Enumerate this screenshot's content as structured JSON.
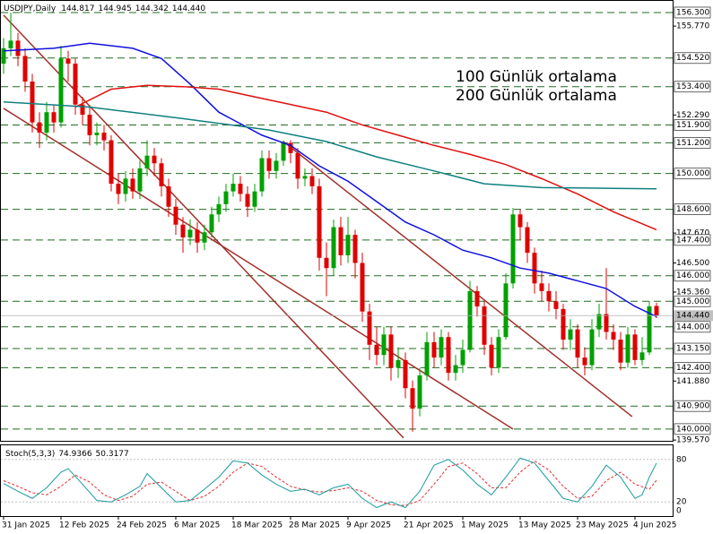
{
  "chart_data": {
    "type": "candlestick",
    "title": "USDJPY,Daily",
    "ohlc_labels": [
      "144.817",
      "144.945",
      "144.342",
      "144.440"
    ],
    "ylim": [
      139.54,
      156.79
    ],
    "yticks": [
      {
        "value": 155.77,
        "label": "155.770"
      },
      {
        "value": 152.29,
        "label": "152.290"
      },
      {
        "value": 147.67,
        "label": "147.670"
      },
      {
        "value": 146.5,
        "label": "146.500"
      },
      {
        "value": 145.36,
        "label": "145.360"
      },
      {
        "value": 141.88,
        "label": "141.880"
      },
      {
        "value": 139.57,
        "label": "139.570"
      }
    ],
    "levels": [
      {
        "value": 156.3,
        "label": "156.300"
      },
      {
        "value": 154.52,
        "label": "154.520"
      },
      {
        "value": 153.4,
        "label": "153.400"
      },
      {
        "value": 151.9,
        "label": "151.900"
      },
      {
        "value": 151.2,
        "label": "151.200"
      },
      {
        "value": 150,
        "label": "150.000"
      },
      {
        "value": 148.6,
        "label": "148.600"
      },
      {
        "value": 147.4,
        "label": "147.400"
      },
      {
        "value": 146,
        "label": "146.000"
      },
      {
        "value": 145,
        "label": "145.000"
      },
      {
        "value": 144,
        "label": "144.000"
      },
      {
        "value": 143.15,
        "label": "143.150"
      },
      {
        "value": 142.4,
        "label": "142.400"
      },
      {
        "value": 140.9,
        "label": "140.900"
      },
      {
        "value": 140,
        "label": "140.000"
      }
    ],
    "level_color": "#1f6b1f",
    "bull_color": "#00a000",
    "bear_color": "#e00000",
    "xticks": [
      {
        "value": 0,
        "label": "31 Jan 2025"
      },
      {
        "value": 8,
        "label": "12 Feb 2025"
      },
      {
        "value": 16,
        "label": "24 Feb 2025"
      },
      {
        "value": 24,
        "label": "6 Mar 2025"
      },
      {
        "value": 32,
        "label": "18 Mar 2025"
      },
      {
        "value": 40,
        "label": "28 Mar 2025"
      },
      {
        "value": 48,
        "label": "9 Apr 2025"
      },
      {
        "value": 56,
        "label": "21 Apr 2025"
      },
      {
        "value": 64,
        "label": "1 May 2025"
      },
      {
        "value": 72,
        "label": "13 May 2025"
      },
      {
        "value": 80,
        "label": "23 May 2025"
      },
      {
        "value": 88,
        "label": "4 Jun 2025"
      }
    ],
    "candles": {
      "open": [
        154.3,
        154.9,
        155.2,
        154.6,
        153.6,
        152.0,
        151.6,
        152.4,
        152.0,
        154.5,
        154.3,
        152.7,
        152.3,
        151.5,
        151.6,
        151.3,
        149.6,
        149.2,
        149.8,
        149.3,
        150.2,
        150.7,
        150.4,
        149.5,
        148.7,
        148.0,
        147.5,
        147.8,
        147.3,
        147.7,
        148.4,
        148.8,
        149.3,
        149.6,
        149.2,
        148.7,
        149.3,
        150.6,
        150.1,
        150.5,
        151.2,
        150.8,
        149.8,
        149.9,
        149.5,
        146.7,
        146.3,
        147.9,
        146.8,
        147.6,
        146.5,
        144.6,
        143.3,
        142.9,
        143.7,
        142.4,
        142.7,
        141.6,
        140.8,
        142.1,
        143.4,
        142.8,
        143.6,
        142.2,
        142.5,
        143.1,
        145.4,
        144.8,
        143.3,
        142.4,
        143.6,
        145.7,
        148.4,
        147.9,
        146.9,
        145.7,
        145.4,
        145.0,
        144.7,
        143.5,
        143.9,
        142.8,
        142.5,
        143.9,
        144.5,
        143.8,
        143.5,
        142.6,
        143.7,
        142.7,
        143.0,
        144.817
      ],
      "high": [
        155.3,
        156.3,
        155.5,
        154.9,
        153.9,
        152.4,
        152.8,
        152.7,
        155.0,
        154.8,
        154.5,
        153.0,
        152.6,
        152.0,
        151.9,
        151.5,
        150.0,
        150.1,
        150.2,
        150.5,
        151.3,
        151.0,
        150.6,
        149.8,
        149.0,
        148.3,
        148.2,
        148.1,
        148.0,
        148.7,
        149.1,
        149.6,
        150.0,
        149.9,
        149.5,
        149.6,
        150.9,
        150.9,
        150.8,
        151.3,
        151.3,
        151.0,
        150.2,
        150.2,
        149.8,
        147.3,
        148.2,
        148.3,
        148.3,
        147.8,
        146.9,
        144.9,
        144.0,
        144.0,
        144.0,
        143.2,
        143.0,
        141.9,
        142.4,
        143.8,
        143.8,
        143.9,
        143.8,
        142.9,
        143.5,
        145.8,
        145.6,
        145.0,
        143.6,
        143.9,
        146.1,
        148.65,
        148.6,
        148.1,
        147.1,
        146.2,
        145.7,
        145.4,
        144.9,
        144.3,
        144.1,
        143.2,
        144.3,
        144.9,
        146.3,
        144.1,
        143.8,
        144.0,
        143.9,
        143.6,
        145.0,
        144.945
      ],
      "low": [
        153.9,
        154.6,
        154.2,
        153.2,
        151.6,
        151.0,
        151.3,
        151.6,
        151.8,
        153.6,
        152.3,
        151.9,
        151.1,
        151.1,
        150.9,
        149.3,
        148.8,
        148.9,
        149.0,
        149.0,
        149.9,
        149.9,
        149.1,
        148.3,
        147.6,
        146.9,
        147.2,
        146.9,
        147.0,
        147.5,
        148.1,
        148.5,
        149.1,
        148.9,
        148.3,
        148.5,
        149.1,
        149.8,
        149.8,
        150.3,
        150.4,
        149.4,
        149.5,
        149.2,
        146.2,
        145.2,
        146.0,
        146.4,
        146.5,
        145.9,
        144.2,
        142.7,
        142.5,
        142.5,
        141.9,
        142.0,
        141.2,
        139.9,
        140.5,
        141.9,
        142.4,
        142.5,
        141.9,
        141.9,
        142.2,
        143.0,
        144.4,
        142.9,
        142.1,
        142.2,
        143.5,
        145.5,
        147.4,
        146.5,
        145.3,
        145.0,
        144.6,
        144.3,
        143.1,
        143.1,
        142.4,
        142.1,
        142.3,
        143.6,
        143.5,
        143.1,
        142.3,
        142.4,
        142.5,
        142.5,
        142.9,
        144.342
      ],
      "close": [
        154.9,
        155.2,
        154.6,
        153.6,
        152.0,
        151.6,
        152.4,
        152.0,
        154.5,
        154.3,
        152.7,
        152.3,
        151.5,
        151.6,
        151.3,
        149.6,
        149.2,
        149.8,
        149.3,
        150.2,
        150.7,
        150.4,
        149.5,
        148.7,
        148.0,
        147.5,
        147.8,
        147.3,
        147.7,
        148.4,
        148.8,
        149.3,
        149.6,
        149.2,
        148.7,
        149.3,
        150.6,
        150.1,
        150.5,
        151.2,
        150.8,
        149.8,
        149.9,
        149.5,
        146.7,
        146.3,
        147.9,
        146.8,
        147.6,
        146.5,
        144.6,
        143.3,
        142.9,
        143.7,
        142.4,
        142.7,
        141.6,
        140.8,
        142.1,
        143.4,
        142.8,
        143.6,
        142.2,
        142.5,
        143.1,
        145.4,
        144.8,
        143.3,
        142.4,
        143.6,
        145.7,
        148.4,
        147.9,
        146.9,
        145.7,
        145.4,
        145.0,
        144.7,
        143.5,
        143.9,
        142.8,
        142.5,
        143.9,
        144.5,
        143.8,
        143.5,
        142.6,
        143.7,
        142.7,
        143.0,
        144.8,
        144.44
      ]
    },
    "series": [
      {
        "color": "#1010e0",
        "x": [
          0,
          7,
          12,
          18,
          22,
          26,
          30,
          36,
          40,
          44,
          48,
          52,
          56,
          60,
          64,
          68,
          72,
          76,
          80,
          84,
          88,
          91
        ],
        "values": [
          154.8,
          154.9,
          155.1,
          154.9,
          154.5,
          153.5,
          152.4,
          151.5,
          151.1,
          150.3,
          149.7,
          148.9,
          148.1,
          147.6,
          147.0,
          146.7,
          146.3,
          146.1,
          145.8,
          145.5,
          144.8,
          144.4
        ]
      },
      {
        "name": "100 Günlük ortalama",
        "color": "#e01010",
        "x": [
          10,
          15,
          20,
          25,
          30,
          35,
          40,
          45,
          50,
          55,
          60,
          65,
          70,
          75,
          80,
          85,
          91
        ],
        "values": [
          152.6,
          153.3,
          153.45,
          153.4,
          153.3,
          153.0,
          152.7,
          152.4,
          151.9,
          151.5,
          151.1,
          150.75,
          150.35,
          149.8,
          149.2,
          148.5,
          147.8
        ]
      },
      {
        "name": "200 Günlük ortalama",
        "color": "#108080",
        "x": [
          0,
          12,
          25,
          37,
          45,
          52,
          60,
          67,
          75,
          85,
          91
        ],
        "values": [
          152.8,
          152.6,
          152.15,
          151.7,
          151.25,
          150.65,
          150.1,
          149.6,
          149.45,
          149.42,
          149.4
        ]
      }
    ],
    "trendlines": [
      {
        "color": "#a0302a",
        "x": [
          0,
          55.75
        ],
        "values": [
          156.2,
          139.65
        ]
      },
      {
        "color": "#a0302a",
        "x": [
          0,
          71
        ],
        "values": [
          152.55,
          140.0
        ]
      },
      {
        "color": "#a0302a",
        "x": [
          39,
          87.6
        ],
        "values": [
          151.25,
          140.49
        ]
      }
    ],
    "stoch": {
      "title": "Stoch(5,3,3)",
      "ylim": [
        0,
        100
      ],
      "yticks": [
        80,
        20,
        0
      ],
      "k": {
        "color": "#1a9aa0",
        "x": [
          0,
          2,
          4,
          6,
          8,
          9,
          11,
          13,
          15,
          17,
          19,
          20,
          22,
          24,
          26,
          28,
          30,
          32,
          34,
          36,
          38,
          40,
          42,
          44,
          46,
          48,
          50,
          52,
          54,
          56,
          58,
          60,
          62,
          64,
          66,
          68,
          70,
          72,
          74,
          76,
          78,
          80,
          82,
          84,
          86,
          88,
          89,
          90,
          91
        ],
        "values": [
          46,
          35,
          25,
          40,
          62,
          67,
          45,
          22,
          20,
          30,
          42,
          60,
          40,
          20,
          22,
          38,
          55,
          78,
          75,
          58,
          45,
          35,
          38,
          30,
          40,
          45,
          25,
          12,
          20,
          12,
          35,
          72,
          80,
          65,
          45,
          30,
          55,
          82,
          75,
          50,
          25,
          20,
          42,
          72,
          55,
          25,
          30,
          55,
          74.9366
        ]
      },
      "d": {
        "color": "#e03030",
        "x": [
          0,
          2,
          4,
          6,
          8,
          10,
          12,
          14,
          16,
          18,
          20,
          22,
          24,
          26,
          28,
          30,
          32,
          34,
          36,
          38,
          40,
          42,
          44,
          46,
          48,
          50,
          52,
          54,
          56,
          58,
          60,
          62,
          64,
          66,
          68,
          70,
          72,
          74,
          76,
          78,
          80,
          82,
          84,
          86,
          88,
          90,
          91
        ],
        "values": [
          50,
          42,
          33,
          30,
          42,
          58,
          48,
          30,
          22,
          28,
          45,
          48,
          35,
          22,
          28,
          42,
          62,
          75,
          70,
          55,
          42,
          37,
          34,
          36,
          40,
          35,
          22,
          16,
          15,
          22,
          45,
          70,
          75,
          60,
          40,
          40,
          62,
          78,
          65,
          42,
          25,
          28,
          50,
          62,
          45,
          38,
          50.3177
        ]
      }
    }
  }
}
